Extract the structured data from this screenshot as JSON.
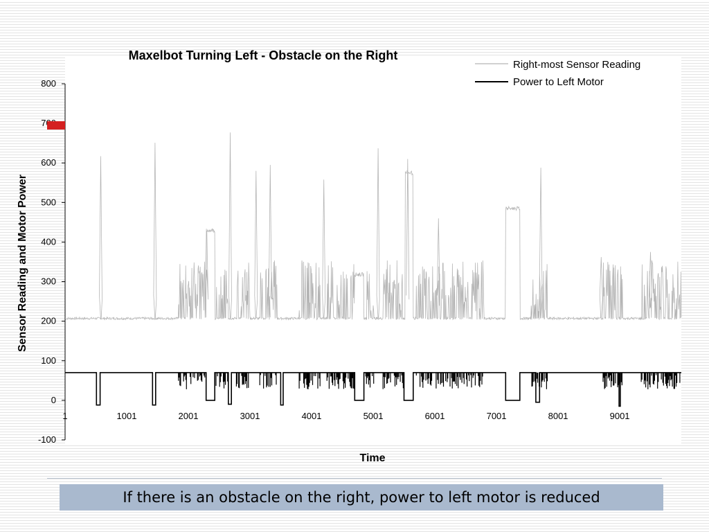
{
  "slide": {
    "caption": "If there is an obstacle on the right, power to left motor is reduced",
    "accent_color": "#d42020",
    "caption_bg": "#a9b9ce"
  },
  "chart_data": {
    "type": "line",
    "title": "Maxelbot Turning Left - Obstacle on the Right",
    "xlabel": "Time",
    "ylabel": "Sensor Reading and Motor Power",
    "ylim": [
      -100,
      800
    ],
    "yticks": [
      -100,
      0,
      100,
      200,
      300,
      400,
      500,
      600,
      700,
      800
    ],
    "xlim": [
      1,
      10000
    ],
    "xticks": [
      "1",
      "1001",
      "2001",
      "3001",
      "4001",
      "5001",
      "6001",
      "7001",
      "8001",
      "9001"
    ],
    "legend_position": "top-right",
    "grid": false,
    "series": [
      {
        "name": "Right-most Sensor Reading",
        "color": "#b5b5b5",
        "baseline": 205,
        "peaks": [
          {
            "x": 580,
            "y": 617
          },
          {
            "x": 1460,
            "y": 651
          },
          {
            "x": 2300,
            "y": 330
          },
          {
            "x": 2680,
            "y": 677
          },
          {
            "x": 3100,
            "y": 580
          },
          {
            "x": 3330,
            "y": 595
          },
          {
            "x": 4200,
            "y": 558
          },
          {
            "x": 5080,
            "y": 637
          },
          {
            "x": 5560,
            "y": 610
          },
          {
            "x": 6060,
            "y": 460
          },
          {
            "x": 7720,
            "y": 588
          },
          {
            "x": 8700,
            "y": 362
          },
          {
            "x": 9500,
            "y": 375
          }
        ],
        "plateaus": [
          {
            "x_start": 2290,
            "x_end": 2430,
            "y": 430
          },
          {
            "x_start": 4700,
            "x_end": 4850,
            "y": 318
          },
          {
            "x_start": 5520,
            "x_end": 5650,
            "y": 575
          },
          {
            "x_start": 7150,
            "x_end": 7380,
            "y": 485
          }
        ],
        "active_ranges": [
          [
            1840,
            2280
          ],
          [
            2450,
            2650
          ],
          [
            2780,
            3000
          ],
          [
            3160,
            3440
          ],
          [
            3800,
            4150
          ],
          [
            4250,
            4700
          ],
          [
            4880,
            5020
          ],
          [
            5160,
            5500
          ],
          [
            5700,
            6200
          ],
          [
            6200,
            6800
          ],
          [
            7550,
            7850
          ],
          [
            8730,
            9050
          ],
          [
            9350,
            10000
          ]
        ]
      },
      {
        "name": "Power to Left Motor",
        "color": "#000000",
        "baseline": 70,
        "dips": [
          {
            "x_start": 510,
            "x_end": 570,
            "y": -12
          },
          {
            "x_start": 1420,
            "x_end": 1470,
            "y": -12
          },
          {
            "x_start": 2290,
            "x_end": 2430,
            "y": 0
          },
          {
            "x_start": 2650,
            "x_end": 2700,
            "y": -10
          },
          {
            "x_start": 3500,
            "x_end": 3540,
            "y": -12
          },
          {
            "x_start": 4700,
            "x_end": 4850,
            "y": 0
          },
          {
            "x_start": 5500,
            "x_end": 5650,
            "y": 0
          },
          {
            "x_start": 7150,
            "x_end": 7380,
            "y": 0
          },
          {
            "x_start": 7640,
            "x_end": 7700,
            "y": -5
          },
          {
            "x_start": 8990,
            "x_end": 9010,
            "y": -15
          }
        ]
      }
    ]
  }
}
